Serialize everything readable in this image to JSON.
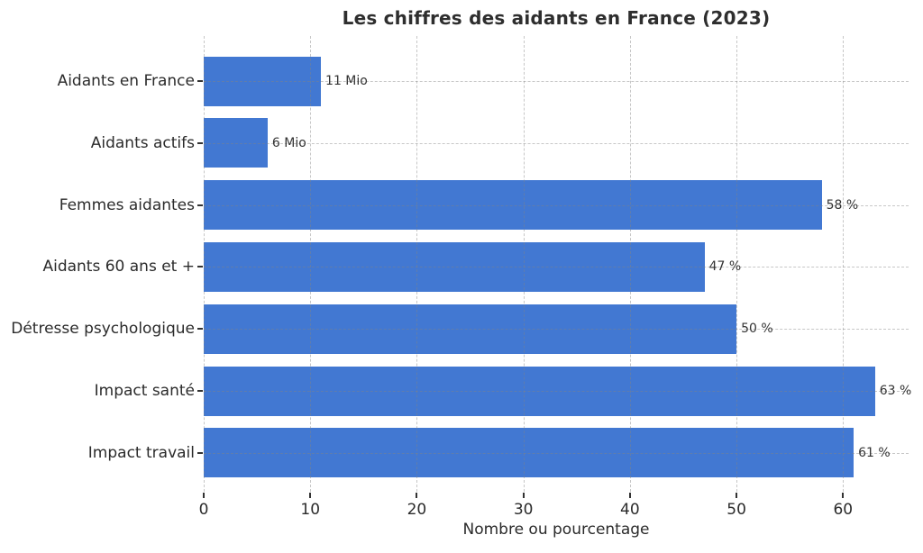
{
  "chart_data": {
    "type": "bar",
    "orientation": "horizontal",
    "title": "Les chiffres des aidants en France (2023)",
    "xlabel": "Nombre ou pourcentage",
    "ylabel": "",
    "categories": [
      "Aidants en France",
      "Aidants actifs",
      "Femmes aidantes",
      "Aidants 60 ans et +",
      "Détresse psychologique",
      "Impact santé",
      "Impact travail"
    ],
    "values": [
      11,
      6,
      58,
      47,
      50,
      63,
      61
    ],
    "value_labels": [
      "11 Mio",
      "6 Mio",
      "58 %",
      "47 %",
      "50 %",
      "63 %",
      "61 %"
    ],
    "xticks": [
      0,
      10,
      20,
      30,
      40,
      50,
      60
    ],
    "xlim": [
      0,
      66.15
    ],
    "grid": true,
    "grid_style": "dashed",
    "legend": "none",
    "bar_color": "#4278d2",
    "text_color": "#2b2b2b",
    "units_note": "first two bars in millions (Mio), remaining bars in percent"
  }
}
